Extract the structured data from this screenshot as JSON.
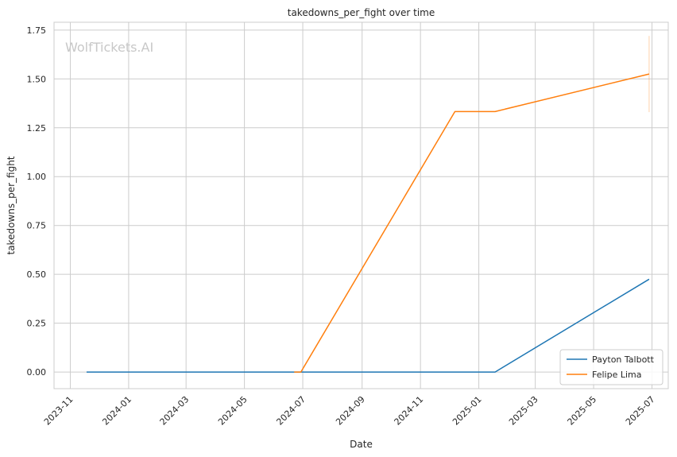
{
  "watermark": "WolfTickets.AI",
  "chart_data": {
    "type": "line",
    "title": "takedowns_per_fight over time",
    "xlabel": "Date",
    "ylabel": "takedowns_per_fight",
    "xlim": [
      "2023-10-15",
      "2025-07-18"
    ],
    "ylim": [
      -0.085,
      1.79
    ],
    "x_ticks": [
      "2023-11",
      "2024-01",
      "2024-03",
      "2024-05",
      "2024-07",
      "2024-09",
      "2024-11",
      "2025-01",
      "2025-03",
      "2025-05",
      "2025-07"
    ],
    "y_ticks": [
      "0.00",
      "0.25",
      "0.50",
      "0.75",
      "1.00",
      "1.25",
      "1.50",
      "1.75"
    ],
    "y_tick_values": [
      0,
      0.25,
      0.5,
      0.75,
      1.0,
      1.25,
      1.5,
      1.75
    ],
    "grid": true,
    "legend_position": "bottom-right",
    "series": [
      {
        "name": "Payton Talbott",
        "color": "#1f77b4",
        "points": [
          {
            "x": "2023-11-18",
            "y": 0
          },
          {
            "x": "2024-06-22",
            "y": 0
          },
          {
            "x": "2025-01-18",
            "y": 0
          },
          {
            "x": "2025-06-28",
            "y": 0.475
          }
        ]
      },
      {
        "name": "Felipe Lima",
        "color": "#ff7f0e",
        "points": [
          {
            "x": "2024-06-22",
            "y": 0
          },
          {
            "x": "2024-06-29",
            "y": 0
          },
          {
            "x": "2024-12-07",
            "y": 1.333
          },
          {
            "x": "2025-01-18",
            "y": 1.333
          },
          {
            "x": "2025-06-28",
            "y": 1.525
          }
        ],
        "error_bar": {
          "x": "2025-06-28",
          "low": 1.33,
          "high": 1.72
        }
      }
    ]
  }
}
